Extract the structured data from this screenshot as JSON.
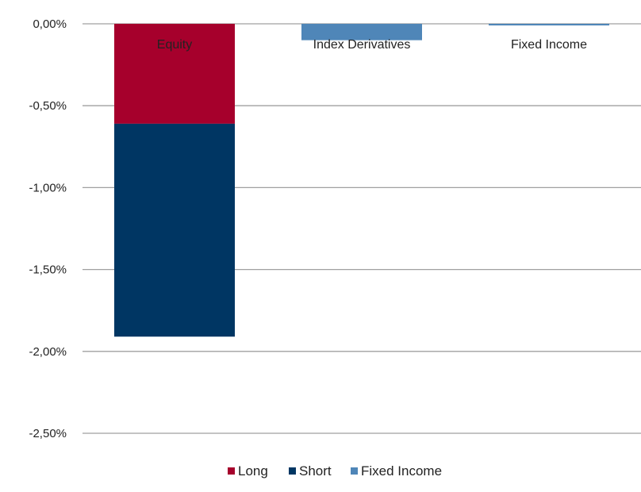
{
  "colors": {
    "long": "#a6002c",
    "short": "#003663",
    "fixed_income": "#4f86b8",
    "grid": "#a0a0a0"
  },
  "chart_data": {
    "type": "bar",
    "stacked": true,
    "categories": [
      "Equity",
      "Index Derivatives",
      "Fixed Income"
    ],
    "series": [
      {
        "name": "Long",
        "values": [
          -0.61,
          0,
          0
        ]
      },
      {
        "name": "Short",
        "values": [
          -1.3,
          0,
          0
        ]
      },
      {
        "name": "Fixed Income",
        "values": [
          0,
          -0.1,
          -0.01
        ]
      }
    ],
    "y_ticks": [
      "0,00%",
      "-0,50%",
      "-1,00%",
      "-1,50%",
      "-2,00%",
      "-2,50%"
    ],
    "y_tick_values": [
      0,
      -0.5,
      -1.0,
      -1.5,
      -2.0,
      -2.5
    ],
    "ylim": [
      -2.5,
      0
    ],
    "grid": true,
    "legend_position": "bottom",
    "title": "",
    "xlabel": "",
    "ylabel": ""
  }
}
